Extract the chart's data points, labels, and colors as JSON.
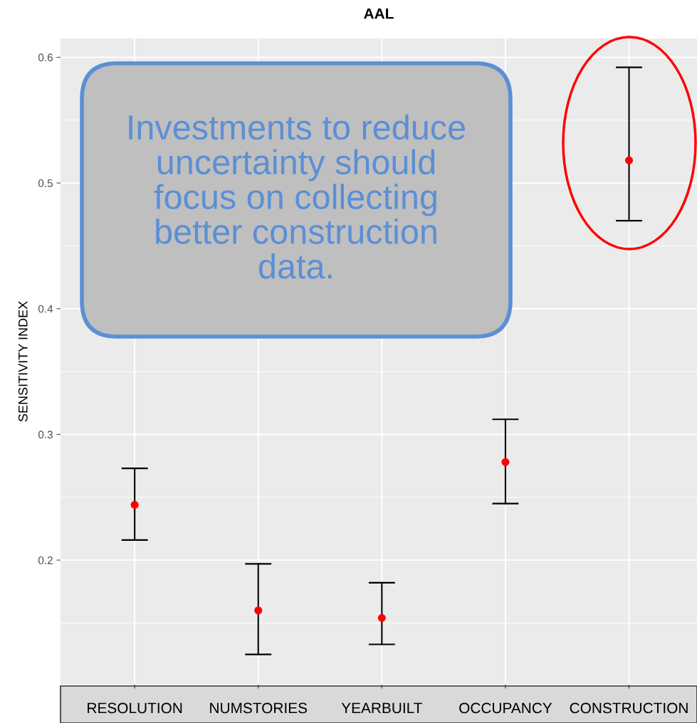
{
  "chart_data": {
    "type": "scatter",
    "title": "AAL",
    "ylabel": "SENSITIVITY INDEX",
    "categories": [
      "RESOLUTION",
      "NUMSTORIES",
      "YEARBUILT",
      "OCCUPANCY",
      "CONSTRUCTION"
    ],
    "series": [
      {
        "color": "#ff0000",
        "values": [
          0.244,
          0.16,
          0.154,
          0.278,
          0.518
        ],
        "errors": [
          [
            0.216,
            0.273
          ],
          [
            0.125,
            0.197
          ],
          [
            0.133,
            0.182
          ],
          [
            0.245,
            0.312
          ],
          [
            0.47,
            0.592
          ]
        ]
      }
    ],
    "ylim": [
      0.101,
      0.615
    ],
    "yticks": [
      0.2,
      0.3,
      0.4,
      0.5,
      0.6
    ],
    "grid": true,
    "marker": "circle",
    "annotations": [
      "Investments to reduce\nuncertainty should\nfocus on collecting\nbetter construction\ndata."
    ]
  }
}
